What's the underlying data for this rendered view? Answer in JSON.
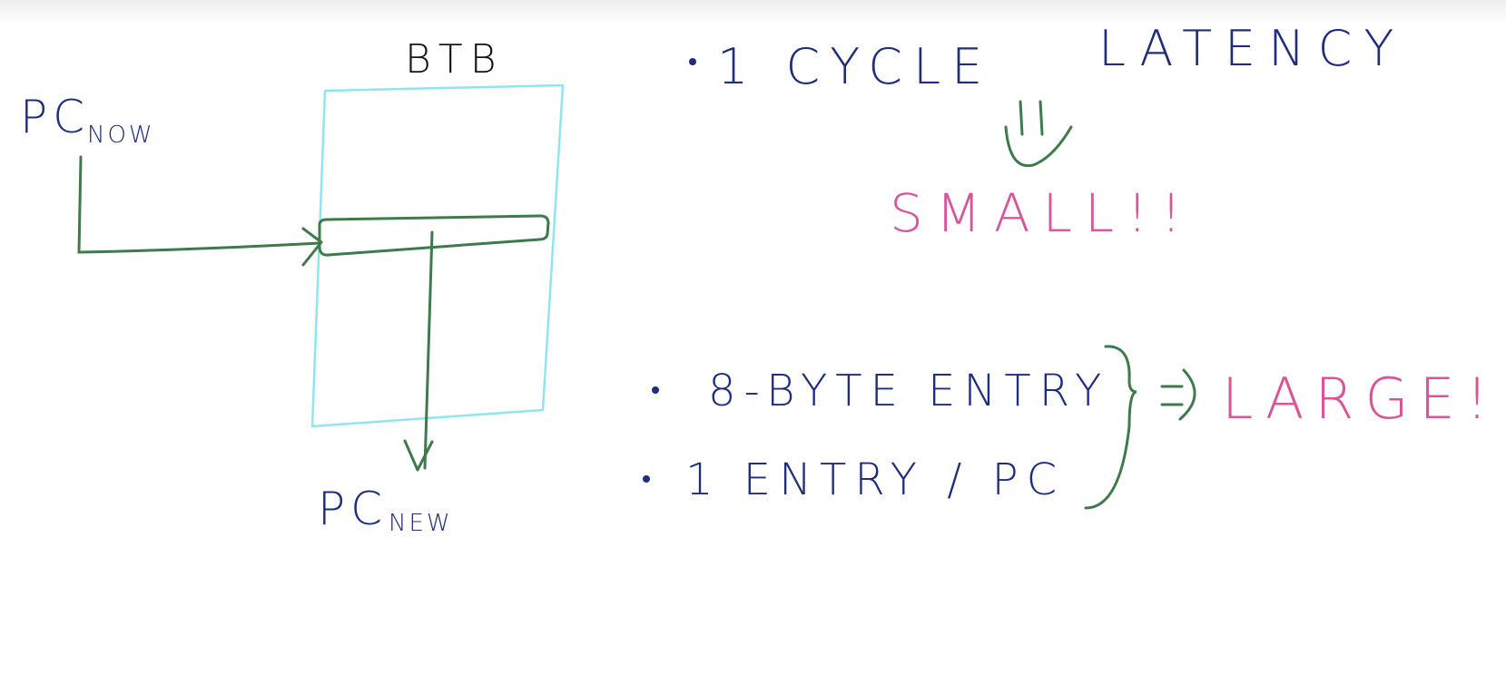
{
  "colors": {
    "ink": "#1f2e7a",
    "black": "#151515",
    "green": "#3f7a4a",
    "cyan": "#8fe6f0",
    "pink": "#d9559a"
  },
  "labels": {
    "btb": "BTB",
    "pc_now_main": "PC",
    "pc_now_sub": "NOW",
    "pc_new_main": "PC",
    "pc_new_sub": "NEW"
  },
  "points": {
    "latency_prefix": "1 CYCLE",
    "latency_word": "LATENCY",
    "small": "SMALL!!",
    "entry_size": "8-BYTE ENTRY",
    "entry_per_pc": "1 ENTRY / PC",
    "large": "LARGE!"
  }
}
